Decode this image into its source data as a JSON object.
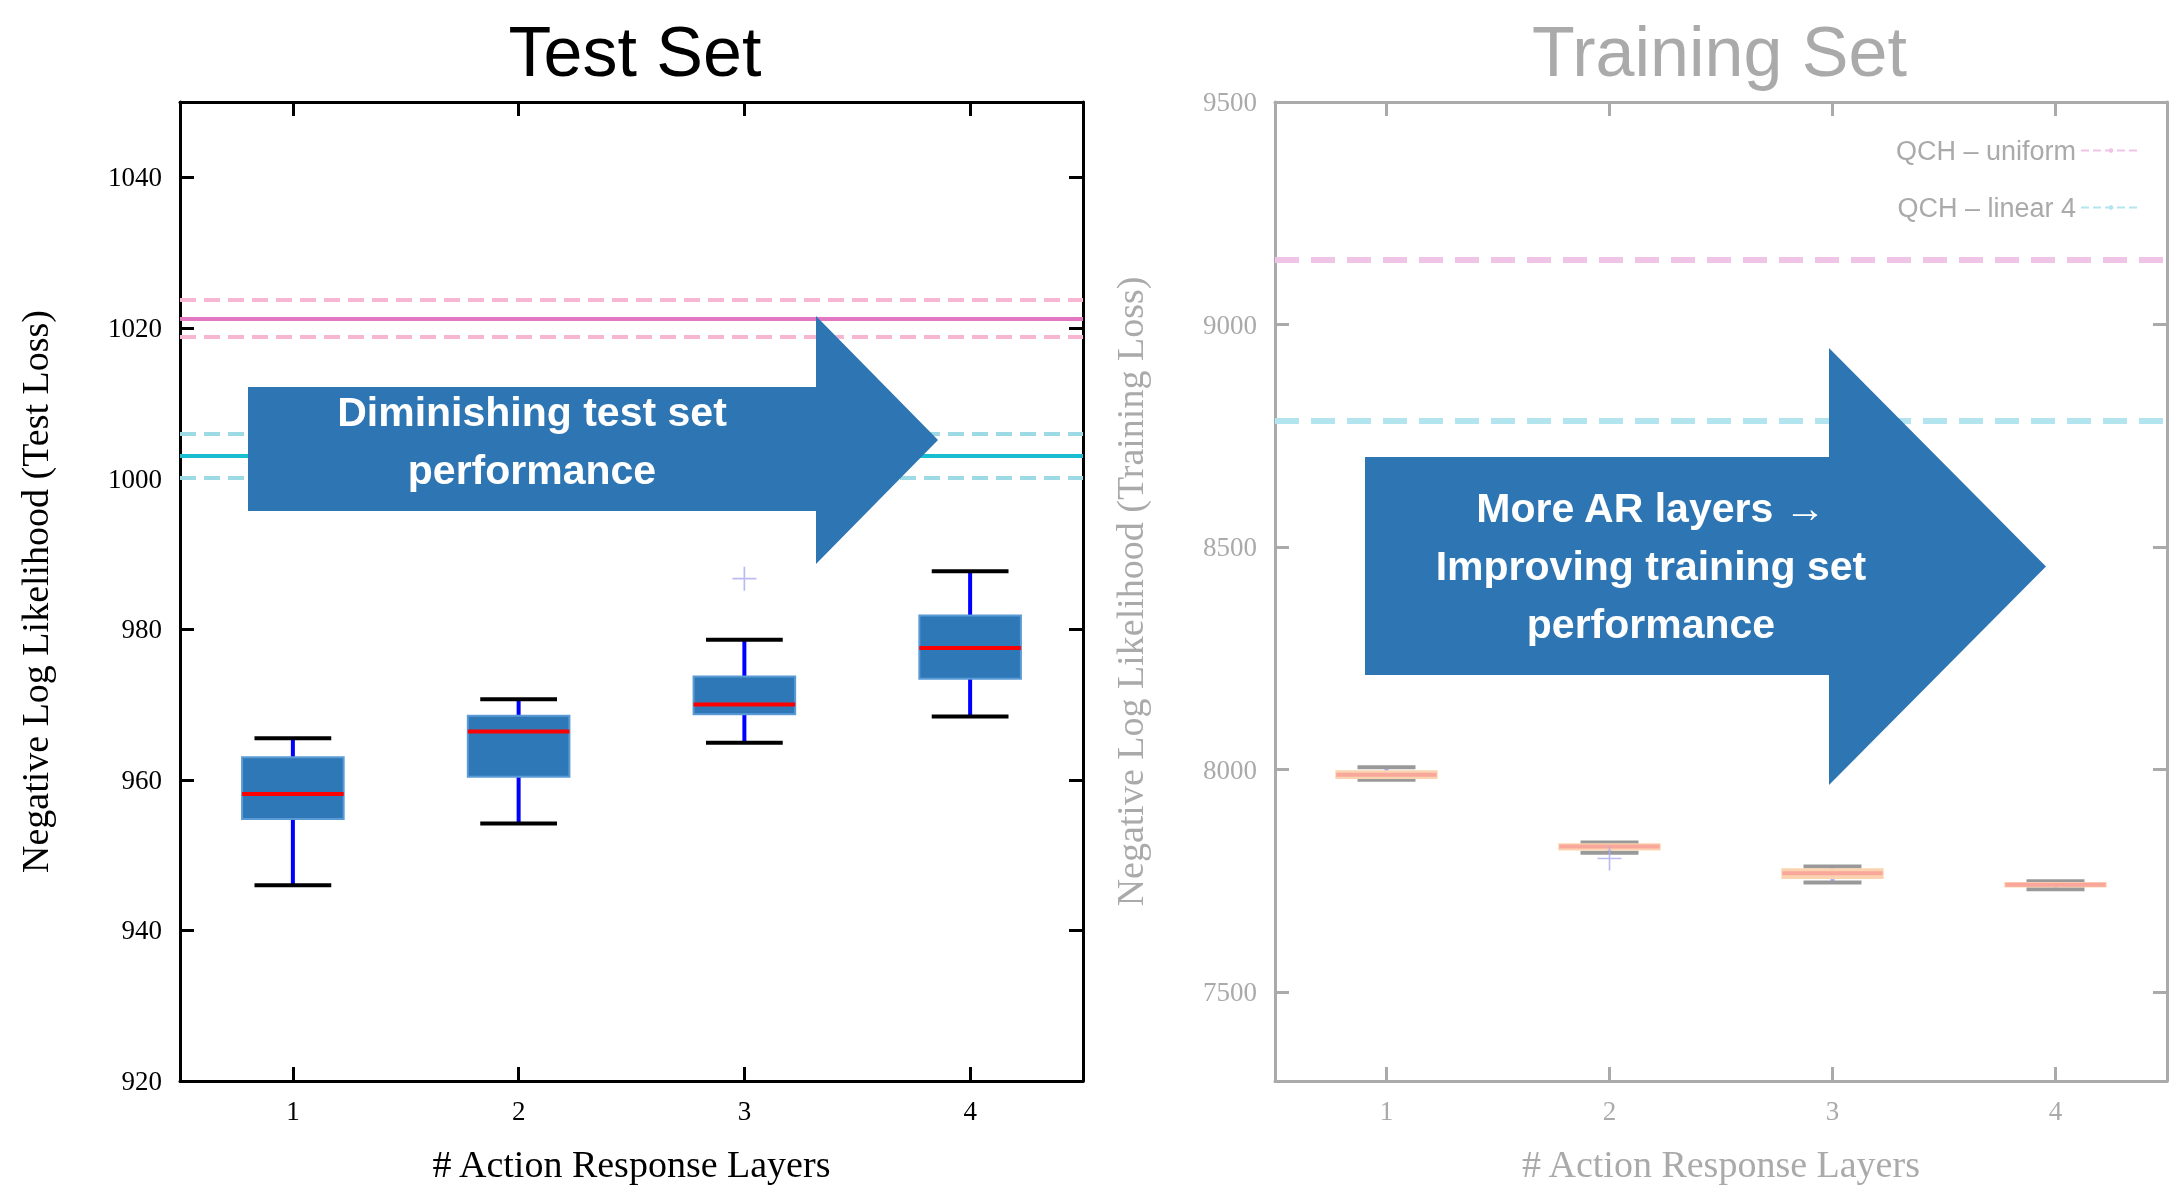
{
  "chart_data": [
    {
      "type": "box",
      "title": "Test Set",
      "xlabel": "# Action Response Layers",
      "ylabel": "Negative Log Likelihood (Test Loss)",
      "categories": [
        "1",
        "2",
        "3",
        "4"
      ],
      "ylim": [
        920,
        1050
      ],
      "yticks": [
        920,
        940,
        960,
        980,
        1000,
        1020,
        1040
      ],
      "series": [
        {
          "color": "#2e78b7",
          "boxes": [
            {
              "low": 946,
              "q1": 954.8,
              "median": 958.1,
              "q3": 963,
              "high": 965.5
            },
            {
              "low": 954.2,
              "q1": 960.4,
              "median": 966.4,
              "q3": 968.5,
              "high": 970.7
            },
            {
              "low": 964.9,
              "q1": 968.7,
              "median": 970,
              "q3": 973.7,
              "high": 978.6,
              "outliers": [
                986.7
              ]
            },
            {
              "low": 968.4,
              "q1": 973.4,
              "median": 977.5,
              "q3": 981.8,
              "high": 987.7
            }
          ]
        }
      ],
      "ref_lines": [
        {
          "axis": "y",
          "value": 1021.2,
          "color": "#e377c2",
          "line_style": "solid"
        },
        {
          "axis": "y",
          "value": 1023.7,
          "color": "#f7b6d2",
          "line_style": "dashed"
        },
        {
          "axis": "y",
          "value": 1018.8,
          "color": "#f7b6d2",
          "line_style": "dashed"
        },
        {
          "axis": "y",
          "value": 1003,
          "color": "#17becf",
          "line_style": "solid"
        },
        {
          "axis": "y",
          "value": 1006,
          "color": "#9edae5",
          "line_style": "dashed"
        },
        {
          "axis": "y",
          "value": 1000.1,
          "color": "#9edae5",
          "line_style": "dashed"
        }
      ],
      "annotations": [
        "Diminishing test set performance"
      ]
    },
    {
      "type": "box",
      "title": "Training Set",
      "xlabel": "# Action Response Layers",
      "ylabel": "Negative Log Likelihood (Training Loss)",
      "categories": [
        "1",
        "2",
        "3",
        "4"
      ],
      "ylim": [
        7300,
        9500
      ],
      "yticks": [
        7500,
        8000,
        8500,
        9000,
        9500
      ],
      "series": [
        {
          "color": "#fcd3b0",
          "boxes": [
            {
              "low": 7977,
              "q1": 7981,
              "median": 7988,
              "q3": 7996,
              "high": 8005
            },
            {
              "low": 7813,
              "q1": 7820,
              "median": 7827,
              "q3": 7832,
              "high": 7836,
              "outliers": [
                7800
              ]
            },
            {
              "low": 7746,
              "q1": 7756,
              "median": 7767,
              "q3": 7776,
              "high": 7782
            },
            {
              "low": 7731,
              "q1": 7737,
              "median": 7741,
              "q3": 7745,
              "high": 7749
            }
          ]
        }
      ],
      "ref_lines": [
        {
          "axis": "y",
          "value": 9145,
          "color": "#f0c4e6",
          "line_style": "dashed",
          "label": "QCH – uniform"
        },
        {
          "axis": "y",
          "value": 8784,
          "color": "#b3e5ee",
          "line_style": "dashed",
          "label": "QCH – linear 4"
        }
      ],
      "legend": "top right",
      "annotations": [
        "More AR layers → Improving training set performance"
      ]
    }
  ]
}
